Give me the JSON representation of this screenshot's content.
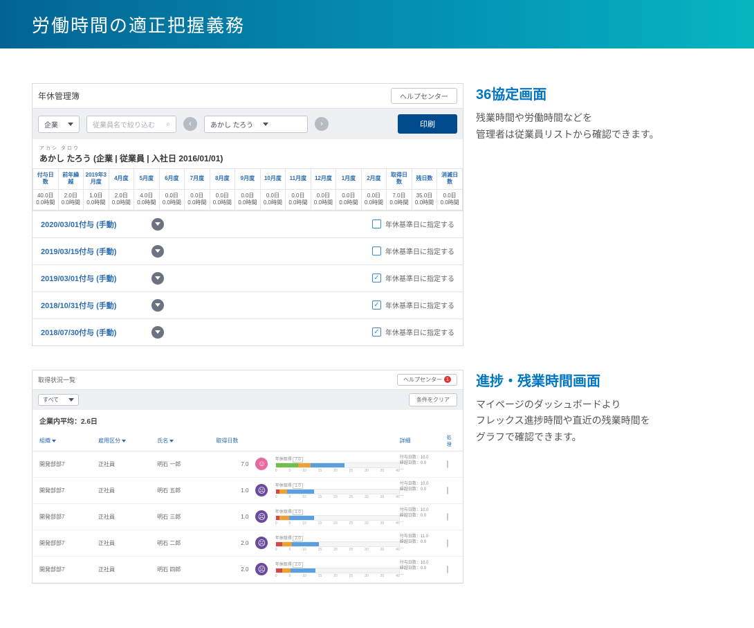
{
  "banner": {
    "title": "労働時間の適正把握義務"
  },
  "section1": {
    "heading": "36協定画面",
    "body": "残業時間や労働時間などを\n管理者は従業員リストから確認できます。"
  },
  "section2": {
    "heading": "進捗・残業時間画面",
    "body": "マイページのダッシュボードより\nフレックス進捗時間や直近の残業時間を\nグラフで確認できます。"
  },
  "shot1": {
    "title": "年休管理簿",
    "help": "ヘルプセンター",
    "filter_dd": "企業",
    "search_placeholder": "従業員名で絞り込む",
    "emp_dd": "あかし たろう",
    "print": "印刷",
    "emp_ruby": "アカシ タロウ",
    "emp_line": "あかし たろう (企業 | 従業員 | 入社日 2016/01/01)",
    "columns": [
      "付与日数",
      "前年繰越",
      "2019年3月度",
      "4月度",
      "5月度",
      "6月度",
      "7月度",
      "8月度",
      "9月度",
      "10月度",
      "11月度",
      "12月度",
      "1月度",
      "2月度",
      "取得日数",
      "残日数",
      "消滅日数"
    ],
    "values": [
      "40.0日 0.0時間",
      "2.0日 0.0時間",
      "1.0日 0.0時間",
      "2.0日 0.0時間",
      "4.0日 0.0時間",
      "0.0日 0.0時間",
      "0.0日 0.0時間",
      "0.0日 0.0時間",
      "0.0日 0.0時間",
      "0.0日 0.0時間",
      "0.0日 0.0時間",
      "0.0日 0.0時間",
      "0.0日 0.0時間",
      "0.0日 0.0時間",
      "7.0日 0.0時間",
      "35.0日 0.0時間",
      "0.0日 0.0時間"
    ],
    "entries": [
      {
        "label": "2020/03/01付与 (手動)",
        "checked": false
      },
      {
        "label": "2019/03/15付与 (手動)",
        "checked": false
      },
      {
        "label": "2019/03/01付与 (手動)",
        "checked": true
      },
      {
        "label": "2018/10/31付与 (手動)",
        "checked": true
      },
      {
        "label": "2018/07/30付与 (手動)",
        "checked": true
      }
    ],
    "check_label": "年休基準日に指定する"
  },
  "shot2": {
    "title": "取得状況一覧",
    "help": "ヘルプセンター",
    "help_badge": "1",
    "filter": "すべて",
    "clear": "条件をクリア",
    "avg": "企業内平均：2.6日",
    "columns": {
      "dept": "組織",
      "type": "雇用区分",
      "name": "氏名",
      "days": "取得日数",
      "detail": "詳細",
      "action": "処理"
    },
    "axis": [
      "0",
      "5",
      "10",
      "15",
      "20",
      "25",
      "30",
      "35",
      "40"
    ],
    "bar_label": "年休取得",
    "info_l1_prefix": "付与日数：",
    "info_l2_prefix": "繰越日数：",
    "colors": {
      "green": "#6fbf4a",
      "orange": "#f0a030",
      "blue": "#5aa0e0",
      "red": "#d04848",
      "bg": "#f4f5f7"
    },
    "rows": [
      {
        "dept": "開発部部7",
        "type": "正社員",
        "name": "明石 一郎",
        "days": "7.0",
        "face": "pink",
        "segs": [
          [
            "green",
            18
          ],
          [
            "orange",
            10
          ],
          [
            "blue",
            28
          ]
        ],
        "grant": "10.0",
        "carry": "0.0"
      },
      {
        "dept": "開発部部7",
        "type": "正社員",
        "name": "明石 五郎",
        "days": "1.0",
        "face": "purple",
        "segs": [
          [
            "red",
            3
          ],
          [
            "orange",
            6
          ],
          [
            "blue",
            22
          ]
        ],
        "grant": "10.0",
        "carry": "0.0"
      },
      {
        "dept": "開発部部7",
        "type": "正社員",
        "name": "明石 三郎",
        "days": "1.0",
        "face": "purple",
        "segs": [
          [
            "red",
            3
          ],
          [
            "orange",
            8
          ],
          [
            "blue",
            20
          ]
        ],
        "grant": "10.0",
        "carry": "0.0"
      },
      {
        "dept": "開発部部7",
        "type": "正社員",
        "name": "明石 二郎",
        "days": "2.0",
        "face": "purple",
        "segs": [
          [
            "red",
            5
          ],
          [
            "orange",
            8
          ],
          [
            "blue",
            22
          ]
        ],
        "grant": "11.0",
        "carry": "0.0"
      },
      {
        "dept": "開発部部7",
        "type": "正社員",
        "name": "明石 四郎",
        "days": "2.0",
        "face": "purple",
        "segs": [
          [
            "red",
            5
          ],
          [
            "orange",
            7
          ],
          [
            "blue",
            20
          ]
        ],
        "grant": "10.0",
        "carry": "0.0"
      }
    ]
  }
}
